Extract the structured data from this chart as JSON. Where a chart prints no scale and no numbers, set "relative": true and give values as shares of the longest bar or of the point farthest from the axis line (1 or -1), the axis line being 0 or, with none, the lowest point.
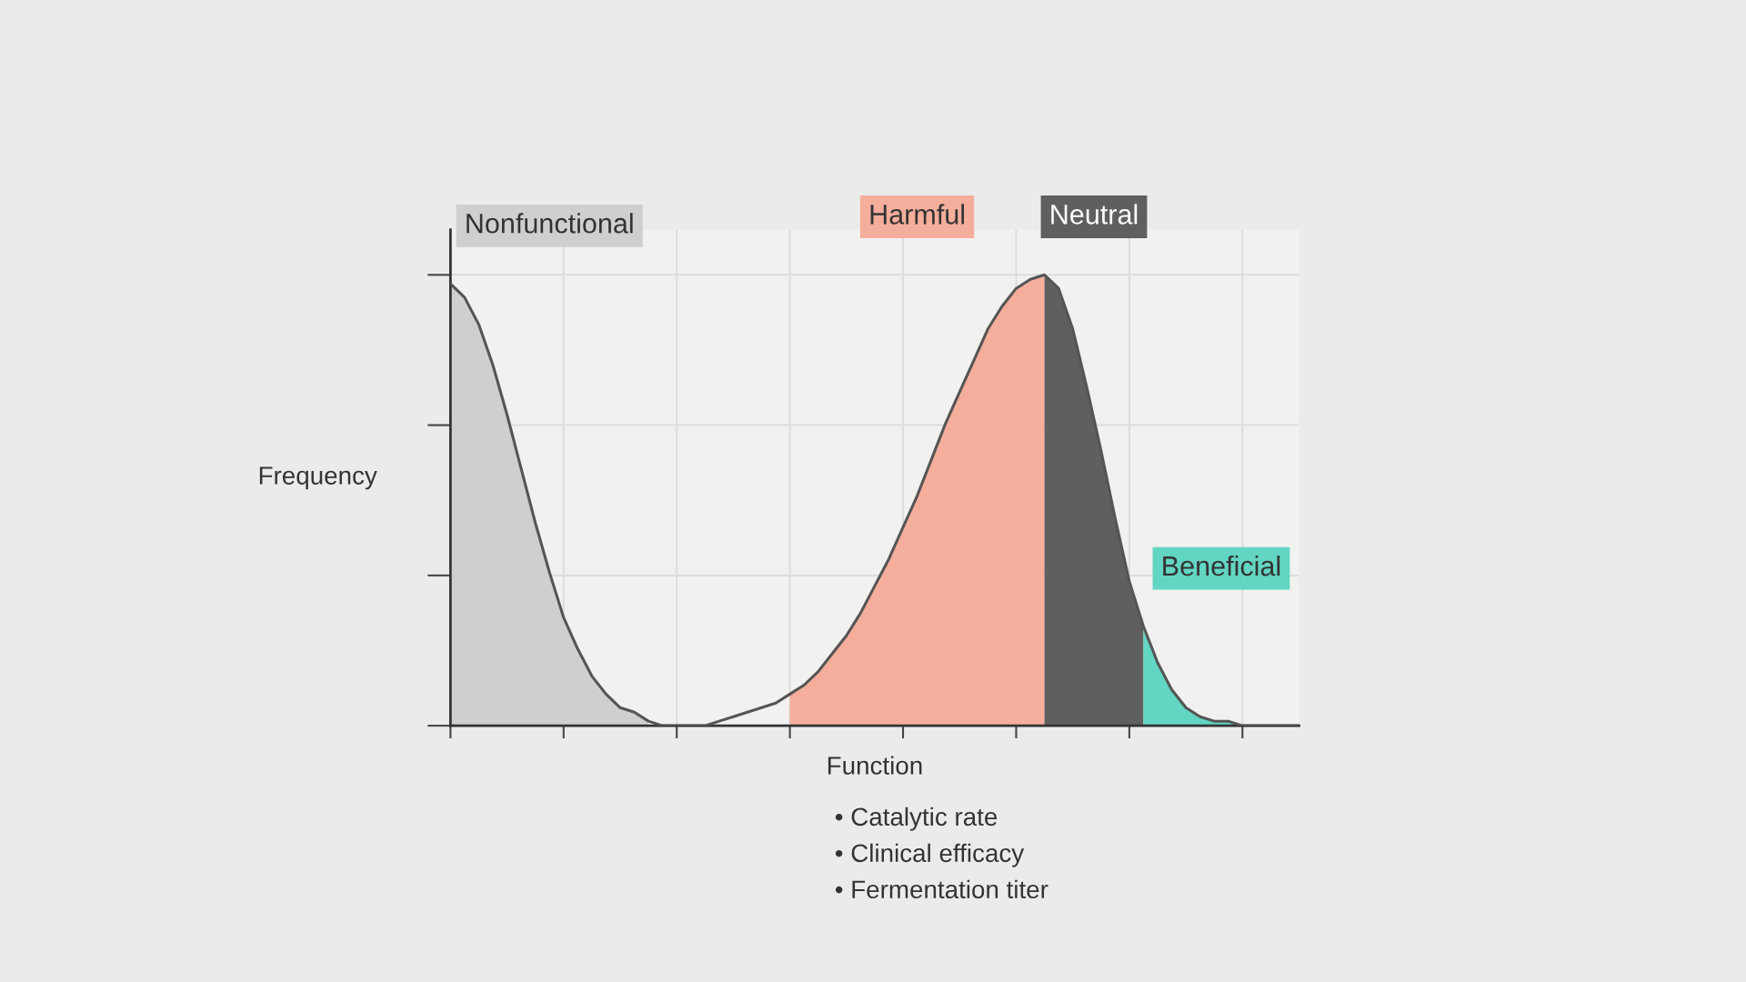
{
  "chart_data": {
    "type": "area",
    "relative": true,
    "grid": true,
    "tick_labels": false,
    "xlabel": "Function",
    "ylabel": "Frequency",
    "annotations": [
      "• Catalytic rate",
      "• Clinical efficacy",
      "• Fermentation titer"
    ],
    "categories": [
      null,
      null,
      null,
      null,
      null,
      null,
      null,
      null,
      null,
      null,
      null,
      null,
      null,
      null,
      null,
      null,
      null,
      null,
      null,
      null,
      null,
      null,
      null,
      null,
      null,
      null,
      null,
      null,
      null,
      null,
      null,
      null,
      null,
      null,
      null,
      null,
      null,
      null,
      null,
      null,
      null,
      null,
      null,
      null,
      null,
      null,
      null,
      null,
      null,
      null,
      null,
      null,
      null,
      null,
      null,
      null,
      null,
      null,
      null,
      null,
      null
    ],
    "series": [
      {
        "name": "Nonfunctional",
        "color": "#cfcfcf",
        "values": [
          0.98,
          0.95,
          0.89,
          0.8,
          0.69,
          0.57,
          0.45,
          0.34,
          0.24,
          0.17,
          0.11,
          0.07,
          0.04,
          0.03,
          0.01,
          null,
          null,
          null,
          null,
          null,
          null,
          null,
          null,
          null,
          null,
          null,
          null,
          null,
          null,
          null,
          null,
          null,
          null,
          null,
          null,
          null,
          null,
          null,
          null,
          null,
          null,
          null,
          null,
          null,
          null,
          null,
          null,
          null,
          null,
          null,
          null,
          null,
          null,
          null,
          null,
          null,
          null,
          null,
          null,
          null,
          null
        ]
      },
      {
        "name": "Harmful",
        "color": "#f6ae9c",
        "values": [
          null,
          null,
          null,
          null,
          null,
          null,
          null,
          null,
          null,
          null,
          null,
          null,
          null,
          null,
          null,
          null,
          null,
          null,
          null,
          null,
          null,
          null,
          null,
          null,
          0.07,
          0.09,
          0.12,
          0.16,
          0.2,
          0.25,
          0.31,
          0.37,
          0.44,
          0.51,
          0.59,
          0.67,
          0.74,
          0.81,
          0.88,
          0.93,
          0.97,
          0.99,
          1,
          null,
          null,
          null,
          null,
          null,
          null,
          null,
          null,
          null,
          null,
          null,
          null,
          null,
          null,
          null,
          null,
          null,
          null
        ]
      },
      {
        "name": "Neutral",
        "color": "#5f5f5f",
        "values": [
          null,
          null,
          null,
          null,
          null,
          null,
          null,
          null,
          null,
          null,
          null,
          null,
          null,
          null,
          null,
          null,
          null,
          null,
          null,
          null,
          null,
          null,
          null,
          null,
          null,
          null,
          null,
          null,
          null,
          null,
          null,
          null,
          null,
          null,
          null,
          null,
          null,
          null,
          null,
          null,
          null,
          null,
          1,
          0.97,
          0.88,
          0.75,
          0.61,
          0.46,
          0.32,
          0.22,
          null,
          null,
          null,
          null,
          null,
          null,
          null,
          null,
          null,
          null,
          null
        ]
      },
      {
        "name": "Beneficial",
        "color": "#62d6c2",
        "values": [
          null,
          null,
          null,
          null,
          null,
          null,
          null,
          null,
          null,
          null,
          null,
          null,
          null,
          null,
          null,
          null,
          null,
          null,
          null,
          null,
          null,
          null,
          null,
          null,
          null,
          null,
          null,
          null,
          null,
          null,
          null,
          null,
          null,
          null,
          null,
          null,
          null,
          null,
          null,
          null,
          null,
          null,
          null,
          null,
          null,
          null,
          null,
          null,
          null,
          0.22,
          0.14,
          0.08,
          0.04,
          0.02,
          0.01,
          0.01,
          0,
          0,
          0,
          0,
          0
        ]
      },
      {
        "type": "line",
        "color": "#555555",
        "values": [
          0.98,
          0.95,
          0.89,
          0.8,
          0.69,
          0.57,
          0.45,
          0.34,
          0.24,
          0.17,
          0.11,
          0.07,
          0.04,
          0.03,
          0.01,
          0,
          0,
          0,
          0,
          0.01,
          0.02,
          0.03,
          0.04,
          0.05,
          0.07,
          0.09,
          0.12,
          0.16,
          0.2,
          0.25,
          0.31,
          0.37,
          0.44,
          0.51,
          0.59,
          0.67,
          0.74,
          0.81,
          0.88,
          0.93,
          0.97,
          0.99,
          1,
          0.97,
          0.88,
          0.75,
          0.61,
          0.46,
          0.32,
          0.22,
          0.14,
          0.08,
          0.04,
          0.02,
          0.01,
          0.01,
          0,
          0,
          0,
          0,
          0
        ]
      }
    ]
  }
}
